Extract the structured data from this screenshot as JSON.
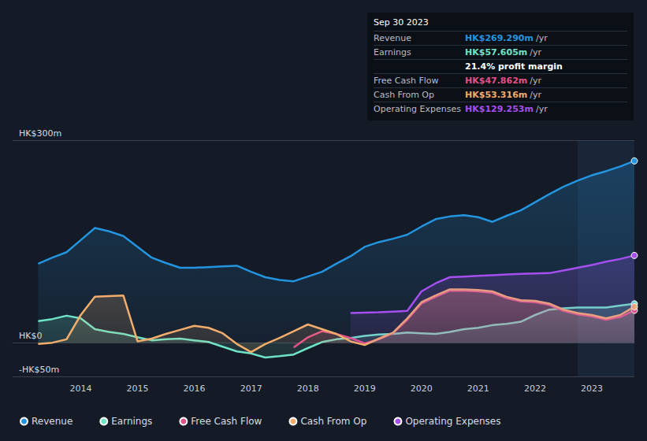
{
  "chart_data": {
    "type": "line",
    "x": [
      2013.25,
      2013.5,
      2013.75,
      2014,
      2014.25,
      2014.5,
      2014.75,
      2015,
      2015.25,
      2015.5,
      2015.75,
      2016,
      2016.25,
      2016.5,
      2016.75,
      2017,
      2017.25,
      2017.5,
      2017.75,
      2018,
      2018.25,
      2018.5,
      2018.75,
      2019,
      2019.25,
      2019.5,
      2019.75,
      2020,
      2020.25,
      2020.5,
      2020.75,
      2021,
      2021.25,
      2021.5,
      2021.75,
      2022,
      2022.25,
      2022.5,
      2022.75,
      2023,
      2023.25,
      2023.5,
      2023.75
    ],
    "xlim": [
      2012.8,
      2023.75
    ],
    "xticks": [
      2014,
      2015,
      2016,
      2017,
      2018,
      2019,
      2020,
      2021,
      2022,
      2023
    ],
    "ylim": [
      -50,
      300
    ],
    "yticks": [
      {
        "value": -50,
        "label": "-HK$50m"
      },
      {
        "value": 0,
        "label": "HK$0"
      },
      {
        "value": 300,
        "label": "HK$300m"
      }
    ],
    "grid": true,
    "legend": "bottom",
    "series": [
      {
        "name": "Revenue",
        "color": "#2394df",
        "values": [
          117,
          126,
          134,
          152,
          170,
          165,
          158,
          142,
          126,
          118,
          111,
          111,
          112,
          113,
          114,
          105,
          97,
          93,
          91,
          98,
          105,
          117,
          128,
          142,
          149,
          154,
          160,
          172,
          183,
          187,
          189,
          186,
          179,
          188,
          196,
          208,
          220,
          231,
          240,
          248,
          254,
          261,
          269.29
        ]
      },
      {
        "name": "Earnings",
        "color": "#6fe3c6",
        "values": [
          32,
          35,
          40,
          36,
          20,
          16,
          13,
          8,
          3.5,
          5,
          6,
          3.5,
          1,
          -6,
          -13,
          -16,
          -22,
          -20,
          -17.5,
          -8,
          1,
          5,
          7,
          10,
          12,
          13,
          15,
          14,
          13,
          16,
          20,
          22,
          26,
          28,
          31,
          41,
          49,
          51,
          52,
          52,
          52,
          55,
          57.605
        ]
      },
      {
        "name": "Free Cash Flow",
        "color": "#e2508a",
        "values": [
          null,
          null,
          null,
          null,
          null,
          null,
          null,
          null,
          null,
          null,
          null,
          null,
          null,
          null,
          null,
          null,
          null,
          null,
          -7,
          8,
          17,
          13,
          7,
          -1,
          5,
          14,
          34,
          58,
          68,
          77,
          77,
          76,
          74,
          66,
          61,
          60,
          56,
          47,
          42,
          39,
          34,
          38,
          47.862
        ]
      },
      {
        "name": "Cash From Op",
        "color": "#f2ac6b",
        "values": [
          -2,
          0,
          5,
          41,
          68,
          69,
          70,
          2,
          6,
          13,
          19,
          25,
          22,
          14,
          -2,
          -14,
          -2,
          7,
          17,
          27,
          20,
          13,
          2,
          -3.5,
          6,
          15,
          36,
          60,
          70,
          79,
          79,
          78,
          76,
          68,
          63,
          62,
          58,
          49,
          44,
          41,
          36,
          41,
          53.316
        ]
      },
      {
        "name": "Operating Expenses",
        "color": "#a54ff0",
        "values": [
          null,
          null,
          null,
          null,
          null,
          null,
          null,
          null,
          null,
          null,
          null,
          null,
          null,
          null,
          null,
          null,
          null,
          null,
          null,
          null,
          null,
          null,
          44,
          44.5,
          45,
          46,
          47,
          76,
          88,
          97,
          98,
          99,
          100,
          101,
          102,
          102.5,
          103,
          107,
          111,
          115,
          120,
          124,
          129.253
        ]
      }
    ],
    "annotations": {
      "title": "Sep 30 2023",
      "rows": [
        {
          "label": "Revenue",
          "value": "HK$269.290m",
          "unit": "/yr"
        },
        {
          "label": "Earnings",
          "value": "HK$57.605m",
          "unit": "/yr"
        },
        {
          "value": "21.4% profit margin"
        },
        {
          "label": "Free Cash Flow",
          "value": "HK$47.862m",
          "unit": "/yr"
        },
        {
          "label": "Cash From Op",
          "value": "HK$53.316m",
          "unit": "/yr"
        },
        {
          "label": "Operating Expenses",
          "value": "HK$129.253m",
          "unit": "/yr"
        }
      ]
    }
  }
}
